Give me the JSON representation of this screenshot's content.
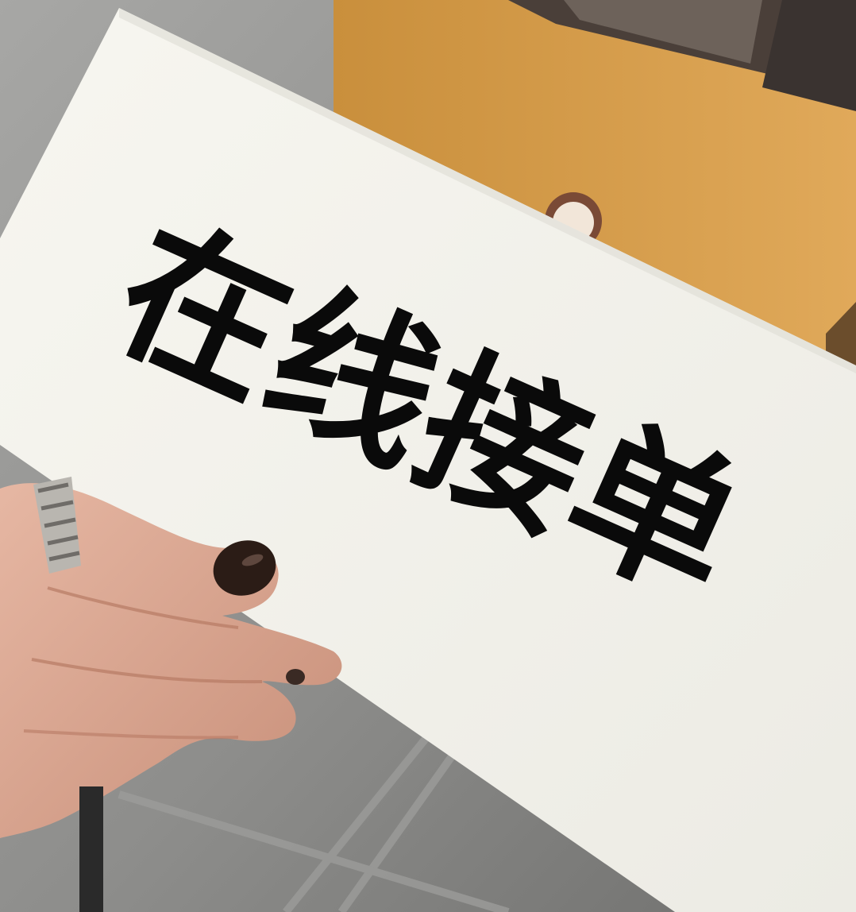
{
  "sign": {
    "text": "在线接单"
  },
  "colors": {
    "card": "#f5f4ee",
    "ink": "#0a0a0a",
    "floor": "#8e8e8c",
    "wall": "#d9a04e",
    "skin": "#d9a690",
    "nail": "#2b1c16",
    "ring": "#b9b6b0"
  },
  "icons": [
    "hand-icon",
    "ring-icon"
  ]
}
